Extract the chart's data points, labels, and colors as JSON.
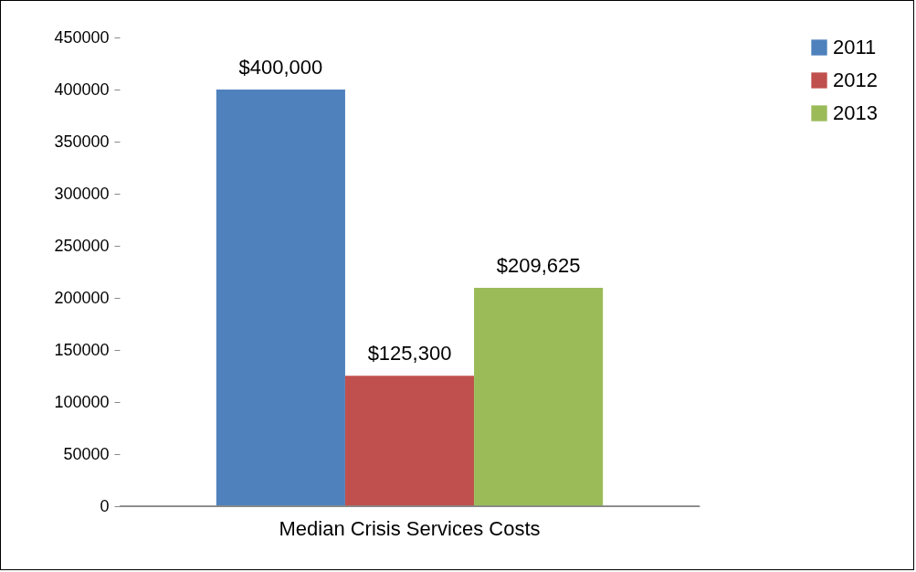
{
  "chart_data": {
    "type": "bar",
    "categories": [
      "Median Crisis Services Costs"
    ],
    "series": [
      {
        "name": "2011",
        "color": "#4f81bd",
        "values": [
          400000
        ],
        "value_labels": [
          "$400,000"
        ]
      },
      {
        "name": "2012",
        "color": "#c0504d",
        "values": [
          125300
        ],
        "value_labels": [
          "$125,300"
        ]
      },
      {
        "name": "2013",
        "color": "#9bbb59",
        "values": [
          209625
        ],
        "value_labels": [
          "$209,625"
        ]
      }
    ],
    "ylim": [
      0,
      450000
    ],
    "yticks": [
      0,
      50000,
      100000,
      150000,
      200000,
      250000,
      300000,
      350000,
      400000,
      450000
    ],
    "legend": "right"
  }
}
